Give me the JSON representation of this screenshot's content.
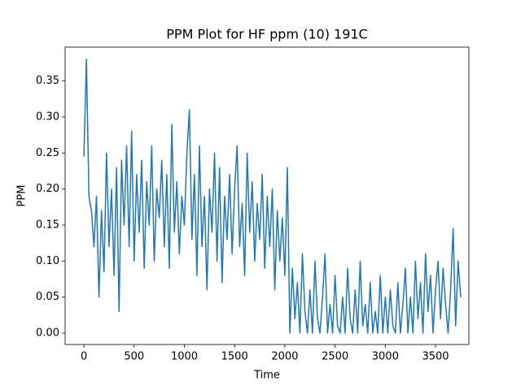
{
  "chart_data": {
    "type": "line",
    "title": "PPM Plot for HF ppm (10) 191C",
    "x_label": "Time",
    "y_label": "PPM",
    "x": [
      0,
      25,
      50,
      75,
      100,
      125,
      150,
      175,
      200,
      225,
      250,
      275,
      300,
      325,
      350,
      375,
      400,
      425,
      450,
      475,
      500,
      525,
      550,
      575,
      600,
      625,
      650,
      675,
      700,
      725,
      750,
      775,
      800,
      825,
      850,
      875,
      900,
      925,
      950,
      975,
      1000,
      1025,
      1050,
      1075,
      1100,
      1125,
      1150,
      1175,
      1200,
      1225,
      1250,
      1275,
      1300,
      1325,
      1350,
      1375,
      1400,
      1425,
      1450,
      1475,
      1500,
      1525,
      1550,
      1575,
      1600,
      1625,
      1650,
      1675,
      1700,
      1725,
      1750,
      1775,
      1800,
      1825,
      1850,
      1875,
      1900,
      1925,
      1950,
      1975,
      2000,
      2025,
      2050,
      2075,
      2100,
      2125,
      2150,
      2175,
      2200,
      2225,
      2250,
      2275,
      2300,
      2325,
      2350,
      2375,
      2400,
      2425,
      2450,
      2475,
      2500,
      2525,
      2550,
      2575,
      2600,
      2625,
      2650,
      2675,
      2700,
      2725,
      2750,
      2775,
      2800,
      2825,
      2850,
      2875,
      2900,
      2925,
      2950,
      2975,
      3000,
      3025,
      3050,
      3075,
      3100,
      3125,
      3150,
      3175,
      3200,
      3225,
      3250,
      3275,
      3300,
      3325,
      3350,
      3375,
      3400,
      3425,
      3450,
      3475,
      3500,
      3525,
      3550,
      3575,
      3600,
      3625,
      3650,
      3675,
      3700,
      3725,
      3750
    ],
    "series": [
      {
        "color": "#1f77b4",
        "values": [
          0.245,
          0.38,
          0.19,
          0.17,
          0.12,
          0.19,
          0.05,
          0.17,
          0.085,
          0.25,
          0.12,
          0.2,
          0.08,
          0.23,
          0.03,
          0.24,
          0.15,
          0.26,
          0.12,
          0.28,
          0.1,
          0.22,
          0.14,
          0.24,
          0.09,
          0.21,
          0.15,
          0.26,
          0.1,
          0.2,
          0.16,
          0.24,
          0.12,
          0.22,
          0.09,
          0.29,
          0.14,
          0.21,
          0.11,
          0.19,
          0.15,
          0.25,
          0.31,
          0.13,
          0.22,
          0.08,
          0.26,
          0.12,
          0.19,
          0.06,
          0.2,
          0.14,
          0.25,
          0.1,
          0.23,
          0.07,
          0.19,
          0.13,
          0.22,
          0.11,
          0.2,
          0.26,
          0.12,
          0.18,
          0.08,
          0.25,
          0.14,
          0.21,
          0.1,
          0.18,
          0.13,
          0.22,
          0.09,
          0.19,
          0.12,
          0.2,
          0.06,
          0.17,
          0.1,
          0.16,
          0.08,
          0.23,
          0.0,
          0.09,
          0.02,
          0.07,
          0.0,
          0.11,
          0.03,
          0.0,
          0.06,
          0.0,
          0.1,
          0.02,
          0.0,
          0.05,
          0.11,
          0.0,
          0.04,
          0.0,
          0.08,
          0.01,
          0.0,
          0.05,
          0.0,
          0.09,
          0.02,
          0.0,
          0.06,
          0.0,
          0.1,
          0.01,
          0.04,
          0.0,
          0.07,
          0.0,
          0.03,
          0.0,
          0.08,
          0.0,
          0.05,
          0.0,
          0.06,
          0.01,
          0.0,
          0.07,
          0.0,
          0.04,
          0.09,
          0.0,
          0.05,
          0.0,
          0.1,
          0.02,
          0.07,
          0.0,
          0.11,
          0.03,
          0.08,
          0.0,
          0.06,
          0.1,
          0.02,
          0.09,
          0.04,
          0.0,
          0.06,
          0.145,
          0.01,
          0.1,
          0.05
        ]
      }
    ],
    "xlim": [
      -187,
      3832
    ],
    "ylim": [
      -0.0158,
      0.397
    ],
    "xticks": [
      0,
      500,
      1000,
      1500,
      2000,
      2500,
      3000,
      3500
    ],
    "yticks": [
      {
        "value": 0,
        "label": "0.00"
      },
      0.05,
      {
        "value": 0.1,
        "label": "0.10"
      },
      0.15,
      {
        "value": 0.2,
        "label": "0.20"
      },
      0.25,
      {
        "value": 0.3,
        "label": "0.30"
      },
      0.35
    ]
  }
}
